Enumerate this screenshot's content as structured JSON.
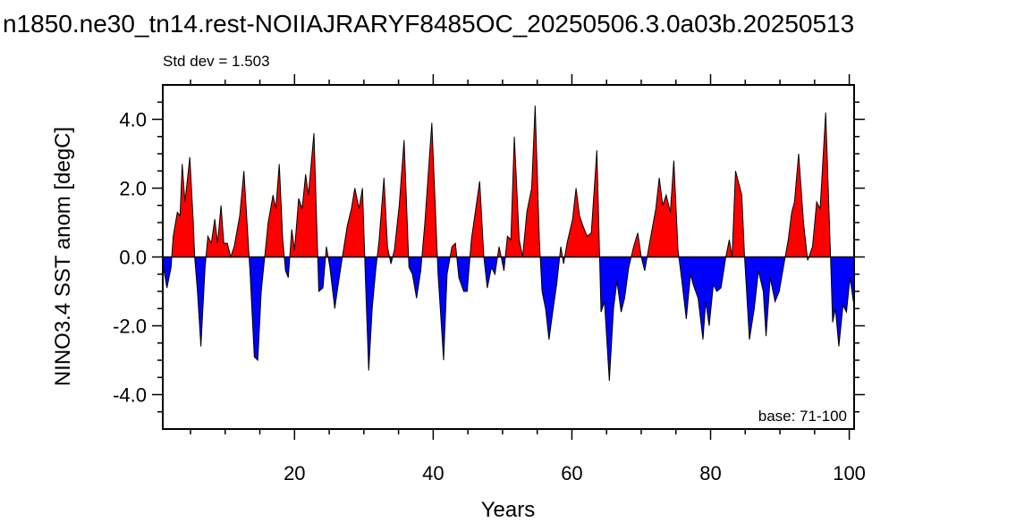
{
  "chart_data": {
    "type": "area",
    "title": "n1850.ne30_tn14.rest-NOIIAJRARYF8485OC_20250506.3.0a03b.20250513",
    "subtitle": "Std dev = 1.503",
    "annotation": "base: 71-100",
    "xlabel": "Years",
    "ylabel": "NINO3.4 SST anom [degC]",
    "xlim": [
      1,
      100.7
    ],
    "ylim": [
      -5,
      5
    ],
    "xticks": [
      20,
      40,
      60,
      80,
      100
    ],
    "xminorticks": [
      5,
      10,
      15,
      25,
      30,
      35,
      45,
      50,
      55,
      65,
      70,
      75,
      85,
      90,
      95
    ],
    "yticks": [
      {
        "value": -4,
        "label": "-4.0"
      },
      {
        "value": -2,
        "label": "-2.0"
      },
      {
        "value": 0,
        "label": "0.0"
      },
      {
        "value": 2,
        "label": "2.0"
      },
      {
        "value": 4,
        "label": "4.0"
      }
    ],
    "yminorticks": [
      -4.5,
      -3.5,
      -3,
      -2.5,
      -1.5,
      -1,
      -0.5,
      0.5,
      1,
      1.5,
      2.5,
      3,
      3.5,
      4.5
    ],
    "positive_color": "#ff0000",
    "negative_color": "#0000ff",
    "line_color": "#000000",
    "x": [
      1.0,
      1.6,
      2.2,
      2.5,
      3.1,
      3.5,
      3.8,
      4.2,
      4.9,
      5.4,
      5.6,
      6.0,
      6.5,
      7.1,
      7.5,
      8.0,
      8.5,
      8.9,
      9.4,
      9.8,
      10.3,
      10.8,
      11.3,
      12.1,
      12.7,
      13.3,
      13.6,
      14.2,
      14.7,
      15.2,
      15.7,
      16.2,
      16.9,
      17.3,
      17.8,
      18.3,
      18.7,
      19.1,
      19.6,
      20.0,
      20.6,
      21.1,
      21.6,
      22.0,
      22.8,
      23.5,
      24.1,
      24.6,
      25.1,
      25.8,
      26.3,
      26.9,
      27.6,
      28.2,
      28.7,
      29.3,
      29.8,
      30.2,
      30.7,
      31.2,
      31.7,
      32.2,
      32.9,
      33.4,
      33.9,
      34.4,
      35.1,
      35.8,
      36.5,
      37.0,
      37.6,
      38.2,
      38.8,
      39.8,
      40.7,
      41.5,
      42.0,
      42.7,
      43.2,
      43.7,
      44.4,
      44.9,
      45.5,
      46.7,
      47.3,
      47.8,
      48.4,
      48.9,
      49.5,
      50.2,
      50.7,
      51.2,
      51.7,
      52.4,
      52.9,
      53.5,
      54.2,
      54.7,
      55.3,
      55.7,
      56.2,
      56.7,
      57.3,
      57.8,
      58.4,
      58.8,
      59.3,
      60.1,
      60.6,
      61.1,
      61.6,
      62.2,
      62.8,
      63.6,
      64.2,
      64.7,
      65.4,
      66.0,
      66.5,
      67.1,
      67.6,
      68.2,
      68.9,
      69.5,
      70.0,
      70.5,
      71.2,
      72.1,
      72.6,
      73.1,
      73.6,
      74.2,
      74.7,
      75.3,
      75.8,
      76.5,
      77.1,
      77.5,
      78.2,
      78.9,
      79.3,
      79.8,
      80.4,
      80.9,
      81.5,
      82.2,
      82.7,
      83.1,
      83.6,
      84.5,
      84.9,
      85.6,
      86.3,
      86.9,
      87.6,
      88.0,
      88.6,
      89.3,
      89.9,
      90.5,
      91.2,
      91.7,
      92.1,
      92.7,
      93.4,
      94.0,
      94.7,
      95.3,
      95.8,
      96.6,
      97.3,
      97.6,
      98.0,
      98.5,
      99.1,
      99.6,
      100.1,
      100.6
    ],
    "values": [
      -0.2,
      -0.9,
      -0.3,
      0.6,
      1.3,
      1.2,
      2.7,
      1.6,
      2.9,
      1.0,
      0.0,
      -1.0,
      -2.6,
      -0.3,
      0.6,
      0.4,
      1.1,
      0.4,
      1.5,
      0.4,
      0.4,
      0.0,
      0.3,
      1.2,
      2.5,
      0.5,
      -0.5,
      -2.9,
      -3.0,
      -1.0,
      0.0,
      1.0,
      1.8,
      1.4,
      2.7,
      0.5,
      -0.4,
      -0.6,
      0.8,
      0.2,
      1.7,
      1.4,
      2.4,
      1.8,
      3.6,
      -1.0,
      -0.9,
      0.3,
      -0.3,
      -1.5,
      -0.8,
      0.0,
      0.9,
      1.4,
      2.0,
      1.4,
      2.0,
      -0.5,
      -3.3,
      -1.5,
      -0.4,
      0.5,
      2.3,
      0.3,
      -0.2,
      0.2,
      1.5,
      3.4,
      -0.3,
      -0.5,
      -1.2,
      -0.4,
      1.0,
      3.9,
      -0.5,
      -3.0,
      -0.5,
      0.3,
      0.4,
      -0.6,
      -1.0,
      -1.0,
      0.5,
      2.2,
      0.0,
      -0.9,
      -0.3,
      -0.5,
      0.3,
      -0.4,
      0.6,
      0.5,
      3.5,
      0.5,
      0.0,
      1.3,
      2.0,
      4.4,
      0.5,
      -1.0,
      -1.5,
      -2.4,
      -1.5,
      -0.8,
      0.3,
      -0.2,
      0.4,
      1.1,
      2.0,
      1.2,
      0.9,
      0.6,
      0.7,
      3.1,
      -1.6,
      -1.3,
      -3.6,
      -1.5,
      -0.7,
      -1.6,
      -1.2,
      -0.3,
      0.3,
      0.7,
      0.0,
      -0.4,
      0.4,
      1.4,
      2.3,
      1.5,
      1.8,
      1.3,
      2.8,
      0.2,
      -0.6,
      -1.8,
      -0.5,
      -0.8,
      -1.2,
      -2.4,
      -1.3,
      -2.0,
      -0.8,
      -1.0,
      -0.9,
      0.0,
      0.5,
      0.0,
      2.5,
      1.8,
      0.0,
      -2.4,
      -1.5,
      -0.4,
      -1.0,
      -2.3,
      -0.6,
      -1.3,
      -1.0,
      -0.3,
      0.5,
      1.3,
      1.6,
      3.0,
      1.0,
      -0.1,
      0.3,
      1.6,
      1.4,
      4.2,
      0.0,
      -1.9,
      -1.5,
      -2.6,
      -1.4,
      -1.6,
      -0.6,
      -1.3
    ]
  }
}
